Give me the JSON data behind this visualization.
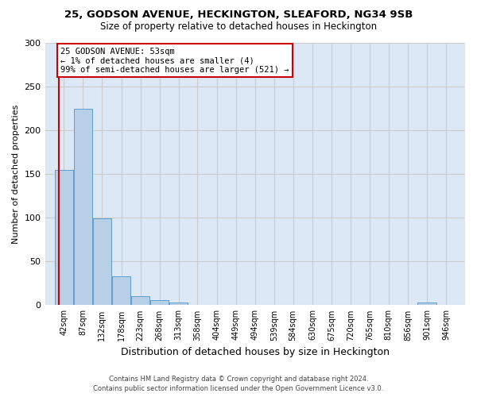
{
  "title": "25, GODSON AVENUE, HECKINGTON, SLEAFORD, NG34 9SB",
  "subtitle": "Size of property relative to detached houses in Heckington",
  "xlabel": "Distribution of detached houses by size in Heckington",
  "ylabel": "Number of detached properties",
  "bar_color": "#b8cfe8",
  "bar_edge_color": "#5a9fd4",
  "bins": [
    42,
    87,
    132,
    178,
    223,
    268,
    313,
    358,
    404,
    449,
    494,
    539,
    584,
    630,
    675,
    720,
    765,
    810,
    856,
    901,
    946
  ],
  "counts": [
    155,
    225,
    99,
    33,
    10,
    6,
    3,
    0,
    0,
    0,
    0,
    0,
    0,
    0,
    0,
    0,
    0,
    0,
    0,
    3
  ],
  "property_size": 53,
  "annotation_text": "25 GODSON AVENUE: 53sqm\n← 1% of detached houses are smaller (4)\n99% of semi-detached houses are larger (521) →",
  "annotation_box_color": "#ffffff",
  "annotation_box_edge": "#cc0000",
  "vline_color": "#cc0000",
  "ylim": [
    0,
    300
  ],
  "yticks": [
    0,
    50,
    100,
    150,
    200,
    250,
    300
  ],
  "grid_color": "#cccccc",
  "background_color": "#dce8f5",
  "footer_line1": "Contains HM Land Registry data © Crown copyright and database right 2024.",
  "footer_line2": "Contains public sector information licensed under the Open Government Licence v3.0."
}
